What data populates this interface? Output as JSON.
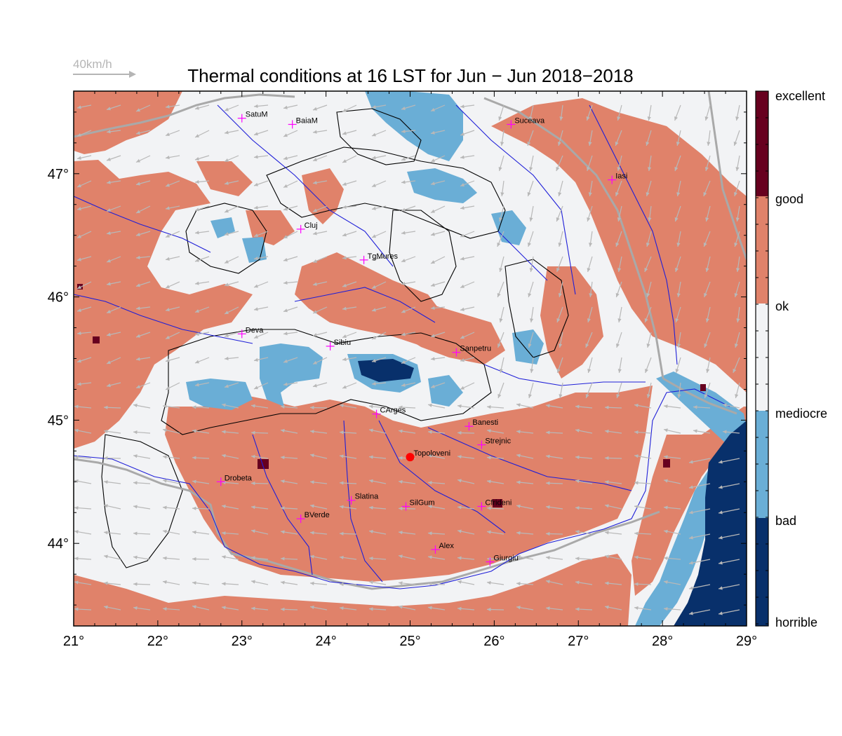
{
  "title": "Thermal conditions at 16 LST for Jun − Jun  2018−2018",
  "wind_scale": {
    "label": "40km/h"
  },
  "colors": {
    "excellent": "#67001f",
    "good": "#e0826a",
    "ok": "#f2f3f5",
    "mediocre": "#6aaed6",
    "bad": "#08306b",
    "river": "#1f1fd8",
    "border": "#a9a9a9",
    "contour": "#000000",
    "wind_arrow": "#b8b8b8",
    "city_marker": "#ff00ff",
    "highlight_point": "#ff0000"
  },
  "map": {
    "lon_range": [
      21,
      29
    ],
    "lat_range": [
      43.33,
      47.67
    ],
    "lon_ticks": [
      "21°",
      "22°",
      "23°",
      "24°",
      "25°",
      "26°",
      "27°",
      "28°",
      "29°"
    ],
    "lat_ticks": [
      "44°",
      "45°",
      "46°",
      "47°"
    ]
  },
  "legend": {
    "labels": [
      "excellent",
      "good",
      "ok",
      "mediocre",
      "bad",
      "horrible"
    ]
  },
  "cities": [
    {
      "name": "SatuM",
      "lon": 23.0,
      "lat": 47.45
    },
    {
      "name": "BaiaM",
      "lon": 23.6,
      "lat": 47.4
    },
    {
      "name": "Suceava",
      "lon": 26.2,
      "lat": 47.4
    },
    {
      "name": "Iasi",
      "lon": 27.4,
      "lat": 46.95
    },
    {
      "name": "Cluj",
      "lon": 23.7,
      "lat": 46.55
    },
    {
      "name": "TgMures",
      "lon": 24.45,
      "lat": 46.3
    },
    {
      "name": "Deva",
      "lon": 23.0,
      "lat": 45.7
    },
    {
      "name": "Sibiu",
      "lon": 24.05,
      "lat": 45.6
    },
    {
      "name": "Sanpetru",
      "lon": 25.55,
      "lat": 45.55
    },
    {
      "name": "CArges",
      "lon": 24.6,
      "lat": 45.05
    },
    {
      "name": "Banesti",
      "lon": 25.7,
      "lat": 44.95
    },
    {
      "name": "Strejnic",
      "lon": 25.85,
      "lat": 44.8
    },
    {
      "name": "Topoloveni",
      "lon": 25.0,
      "lat": 44.7
    },
    {
      "name": "Drobeta",
      "lon": 22.75,
      "lat": 44.5
    },
    {
      "name": "Slatina",
      "lon": 24.3,
      "lat": 44.35
    },
    {
      "name": "SilGum",
      "lon": 24.95,
      "lat": 44.3
    },
    {
      "name": "Ciorogarla",
      "display": "Cfrideni",
      "lon": 25.85,
      "lat": 44.3
    },
    {
      "name": "BVerde",
      "lon": 23.7,
      "lat": 44.2
    },
    {
      "name": "Alex",
      "lon": 25.3,
      "lat": 43.95
    },
    {
      "name": "Giurgiu",
      "lon": 25.95,
      "lat": 43.85
    }
  ]
}
